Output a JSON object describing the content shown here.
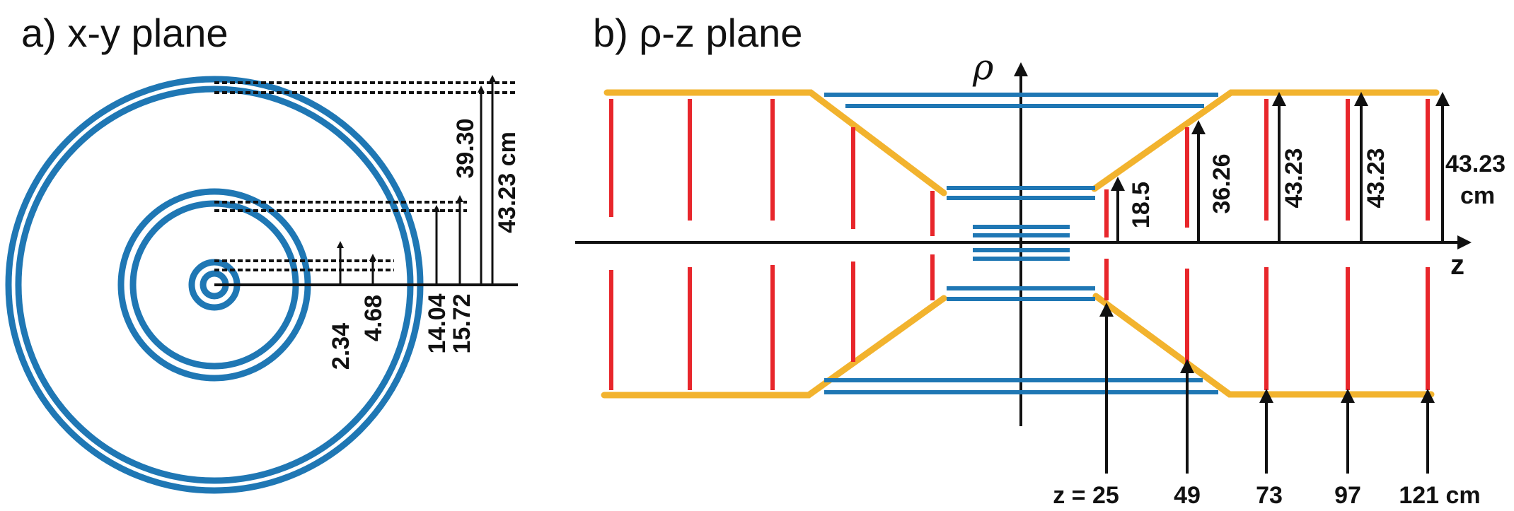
{
  "panel_a": {
    "title": "a) x-y plane",
    "radius_labels": [
      "2.34",
      "4.68",
      "14.04",
      "15.72",
      "39.30",
      "43.23 cm"
    ]
  },
  "panel_b": {
    "title": "b) ρ-z plane",
    "axis_rho": "ρ",
    "axis_z": "z",
    "rho_labels": [
      "18.5",
      "36.26",
      "43.23",
      "43.23",
      "43.23",
      "cm"
    ],
    "z_labels": [
      "z = 25",
      "49",
      "73",
      "97",
      "121 cm"
    ]
  },
  "colors": {
    "barrel": "#1f77b4",
    "disk": "#e8262b",
    "envelope": "#f2b32e",
    "axis": "#111111"
  }
}
